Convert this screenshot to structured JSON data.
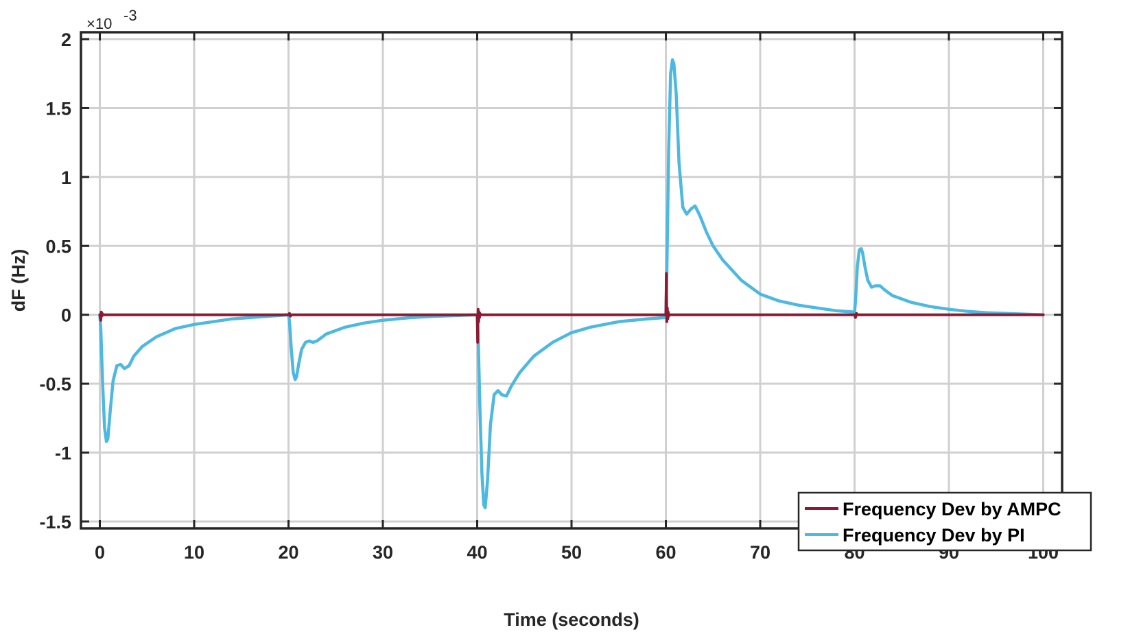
{
  "chart_data": {
    "type": "line",
    "title": "",
    "xlabel": "Time (seconds)",
    "ylabel": "dF (Hz)",
    "y_multiplier_label": "×10",
    "y_multiplier_exponent": "-3",
    "xlim": [
      -2,
      102
    ],
    "ylim": [
      -1.55,
      2.05
    ],
    "xticks": [
      0,
      10,
      20,
      30,
      40,
      50,
      60,
      70,
      80,
      90,
      100
    ],
    "xtick_labels": [
      "0",
      "10",
      "20",
      "30",
      "40",
      "50",
      "60",
      "70",
      "80",
      "90",
      "100"
    ],
    "yticks": [
      2,
      1.5,
      1,
      0.5,
      0,
      -0.5,
      -1,
      -1.5
    ],
    "ytick_labels": [
      "2",
      "1.5",
      "1",
      "0.5",
      "0",
      "-0.5",
      "-1",
      "-1.5"
    ],
    "grid": true,
    "legend_position": "bottom-right",
    "series": [
      {
        "name": "Frequency Dev by AMPC",
        "color": "#8b1a33",
        "x": [
          0,
          0.1,
          0.15,
          0.2,
          0.25,
          0.3,
          0.4,
          20,
          20.1,
          20.2,
          20.3,
          40,
          40.05,
          40.1,
          40.15,
          40.2,
          40.25,
          40.3,
          40.35,
          40.4,
          60,
          60.05,
          60.1,
          60.15,
          60.2,
          60.25,
          60.3,
          60.35,
          60.4,
          80,
          80.1,
          80.2,
          80.3,
          100
        ],
        "y": [
          0,
          -0.04,
          0.02,
          -0.01,
          0.01,
          0,
          0,
          0,
          0.01,
          -0.01,
          0,
          0,
          -0.2,
          0.04,
          -0.05,
          0.02,
          -0.02,
          0.01,
          0,
          0,
          0,
          0.3,
          -0.05,
          0.05,
          -0.03,
          0.02,
          -0.01,
          0,
          0,
          0,
          -0.02,
          0.01,
          0,
          0
        ]
      },
      {
        "name": "Frequency Dev by PI",
        "color": "#4db8e0",
        "x": [
          0,
          0.1,
          0.3,
          0.5,
          0.7,
          0.85,
          1.1,
          1.4,
          1.8,
          2.2,
          2.6,
          3.1,
          3.6,
          4.5,
          6,
          8,
          10,
          12,
          14,
          16,
          18,
          20,
          20.1,
          20.3,
          20.5,
          20.7,
          20.85,
          21.1,
          21.4,
          21.8,
          22.2,
          22.6,
          23,
          24,
          26,
          28,
          30,
          33,
          36,
          40,
          40.1,
          40.3,
          40.5,
          40.7,
          40.85,
          41.1,
          41.4,
          41.8,
          42.2,
          42.6,
          43.1,
          43.6,
          44.5,
          46,
          48,
          50,
          52,
          55,
          58,
          60,
          60.1,
          60.3,
          60.5,
          60.7,
          60.85,
          61.1,
          61.4,
          61.8,
          62.2,
          62.7,
          63.1,
          63.6,
          64.3,
          65,
          66,
          68,
          70,
          72,
          74,
          76,
          78,
          80,
          80.1,
          80.3,
          80.5,
          80.7,
          80.85,
          81.1,
          81.4,
          81.8,
          82.2,
          82.7,
          83.2,
          84,
          86,
          88,
          90,
          92,
          94,
          96,
          98,
          100
        ],
        "y": [
          0,
          -0.1,
          -0.5,
          -0.82,
          -0.92,
          -0.9,
          -0.7,
          -0.48,
          -0.37,
          -0.36,
          -0.39,
          -0.37,
          -0.3,
          -0.23,
          -0.16,
          -0.1,
          -0.07,
          -0.05,
          -0.03,
          -0.02,
          -0.01,
          0,
          -0.05,
          -0.25,
          -0.42,
          -0.47,
          -0.45,
          -0.35,
          -0.25,
          -0.2,
          -0.19,
          -0.2,
          -0.19,
          -0.14,
          -0.09,
          -0.06,
          -0.04,
          -0.02,
          -0.01,
          0,
          -0.15,
          -0.7,
          -1.15,
          -1.38,
          -1.4,
          -1.2,
          -0.8,
          -0.58,
          -0.55,
          -0.58,
          -0.59,
          -0.52,
          -0.42,
          -0.3,
          -0.2,
          -0.13,
          -0.09,
          -0.05,
          -0.03,
          -0.02,
          0.3,
          1.2,
          1.75,
          1.85,
          1.82,
          1.6,
          1.1,
          0.78,
          0.73,
          0.77,
          0.79,
          0.72,
          0.6,
          0.5,
          0.4,
          0.25,
          0.15,
          0.1,
          0.07,
          0.05,
          0.03,
          0.02,
          0.1,
          0.35,
          0.47,
          0.48,
          0.45,
          0.35,
          0.25,
          0.2,
          0.21,
          0.21,
          0.18,
          0.14,
          0.09,
          0.06,
          0.04,
          0.025,
          0.015,
          0.01,
          0.005,
          0
        ]
      }
    ]
  }
}
